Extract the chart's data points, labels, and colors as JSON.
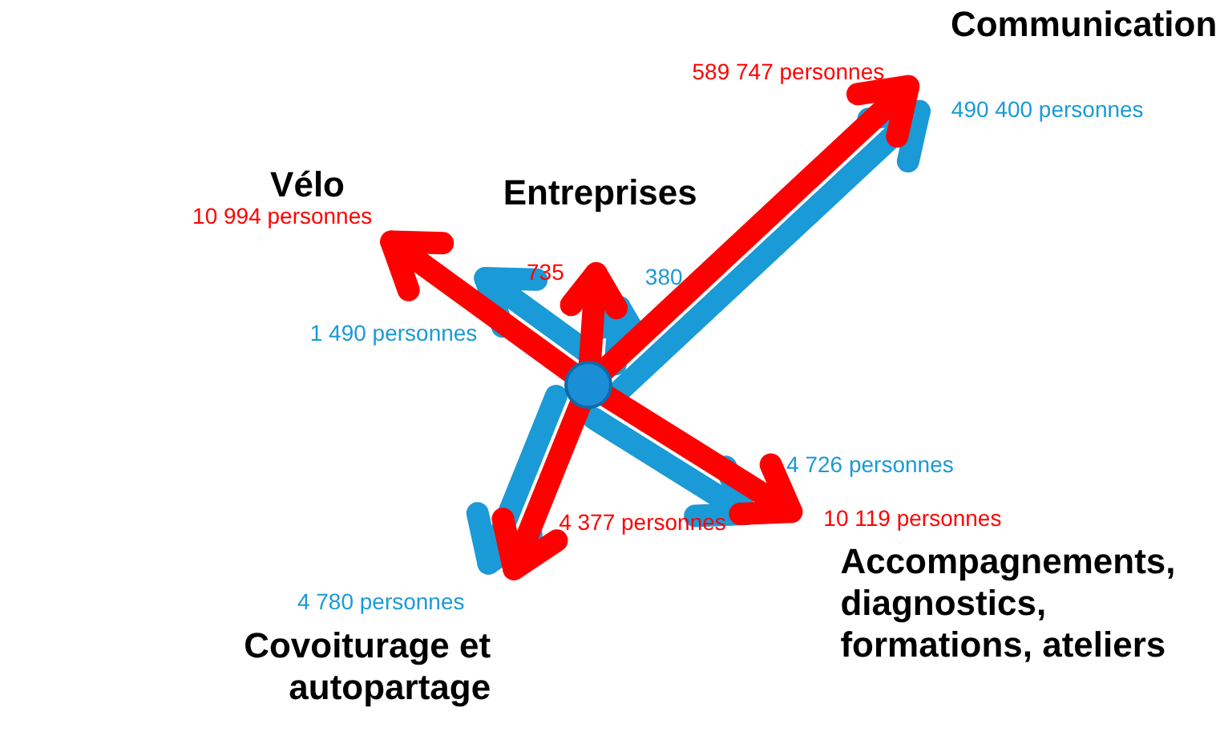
{
  "chart_data": {
    "type": "other",
    "categories": [
      "Vélo",
      "Entreprises",
      "Communication",
      "Accompagnements, diagnostics, formations, ateliers",
      "Covoiturage et autopartage"
    ],
    "series": [
      {
        "color": "#ff0000",
        "values": [
          10994,
          735,
          589747,
          10119,
          4377
        ],
        "value_labels": [
          "10 994 personnes",
          "735",
          "589 747 personnes",
          "10 119 personnes",
          "4 377 personnes"
        ]
      },
      {
        "color": "#1a9ad6",
        "values": [
          1490,
          380,
          490400,
          4726,
          4780
        ],
        "value_labels": [
          "1 490 personnes",
          "380",
          "490 400 personnes",
          "4 726 personnes",
          "4 780 personnes"
        ]
      }
    ]
  }
}
